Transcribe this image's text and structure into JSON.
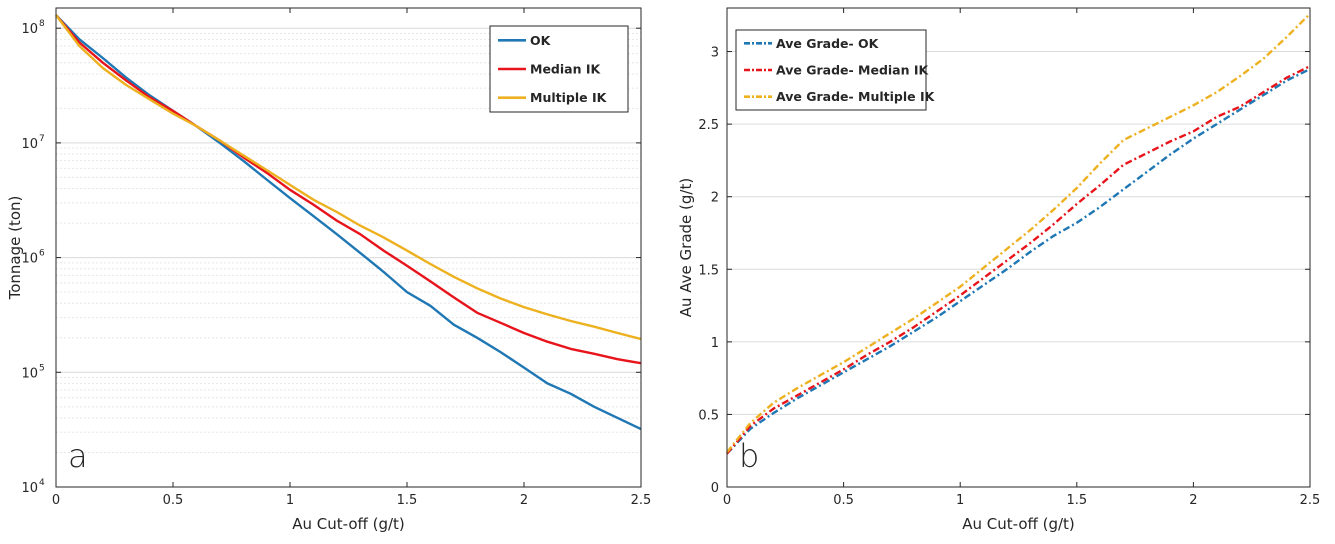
{
  "chart_data": [
    {
      "id": "a",
      "type": "line",
      "panel_label": "a",
      "xlabel": "Au Cut-off (g/t)",
      "ylabel": "Tonnage (ton)",
      "xlim": [
        0,
        2.5
      ],
      "ylim": [
        10000,
        150000000
      ],
      "yscale": "log",
      "x_ticks": [
        0,
        0.5,
        1,
        1.5,
        2,
        2.5
      ],
      "x_tick_labels": [
        "0",
        "0.5",
        "1",
        "1.5",
        "2",
        "2.5"
      ],
      "y_ticks": [
        10000,
        100000,
        1000000,
        10000000,
        100000000
      ],
      "y_tick_labels": [
        [
          "10",
          "4"
        ],
        [
          "10",
          "5"
        ],
        [
          "10",
          "6"
        ],
        [
          "10",
          "7"
        ],
        [
          "10",
          "8"
        ]
      ],
      "grid": "horizontal",
      "legend_position": "top-right",
      "series": [
        {
          "name": "OK",
          "color": "#1f77b4",
          "dash": "solid",
          "x": [
            0,
            0.1,
            0.2,
            0.3,
            0.4,
            0.5,
            0.6,
            0.7,
            0.8,
            0.9,
            1.0,
            1.1,
            1.2,
            1.3,
            1.4,
            1.5,
            1.6,
            1.7,
            1.8,
            1.9,
            2.0,
            2.1,
            2.2,
            2.3,
            2.4,
            2.5
          ],
          "y": [
            130000000,
            80000000,
            55000000,
            37000000,
            26000000,
            19000000,
            14000000,
            10000000,
            7000000,
            4800000,
            3300000,
            2300000,
            1600000,
            1100000,
            750000,
            500000,
            380000,
            260000,
            200000,
            150000,
            110000,
            80000,
            65000,
            50000,
            40000,
            32000
          ]
        },
        {
          "name": "Median IK",
          "color": "#e8141b",
          "dash": "solid",
          "x": [
            0,
            0.1,
            0.2,
            0.3,
            0.4,
            0.5,
            0.6,
            0.7,
            0.8,
            0.9,
            1.0,
            1.1,
            1.2,
            1.3,
            1.4,
            1.5,
            1.6,
            1.7,
            1.8,
            1.9,
            2.0,
            2.1,
            2.2,
            2.3,
            2.4,
            2.5
          ],
          "y": [
            130000000,
            75000000,
            50000000,
            35000000,
            25000000,
            19000000,
            14000000,
            10500000,
            7500000,
            5500000,
            3900000,
            2900000,
            2100000,
            1600000,
            1150000,
            850000,
            620000,
            450000,
            330000,
            270000,
            220000,
            185000,
            160000,
            145000,
            130000,
            120000
          ]
        },
        {
          "name": "Multiple IK",
          "color": "#edb120",
          "dash": "solid",
          "x": [
            0,
            0.1,
            0.2,
            0.3,
            0.4,
            0.5,
            0.6,
            0.7,
            0.8,
            0.9,
            1.0,
            1.1,
            1.2,
            1.3,
            1.4,
            1.5,
            1.6,
            1.7,
            1.8,
            1.9,
            2.0,
            2.1,
            2.2,
            2.3,
            2.4,
            2.5
          ],
          "y": [
            130000000,
            70000000,
            45000000,
            32000000,
            24000000,
            18000000,
            14000000,
            10500000,
            7800000,
            5800000,
            4300000,
            3200000,
            2500000,
            1900000,
            1500000,
            1150000,
            880000,
            680000,
            540000,
            440000,
            370000,
            320000,
            280000,
            250000,
            220000,
            195000
          ]
        }
      ]
    },
    {
      "id": "b",
      "type": "line",
      "panel_label": "b",
      "xlabel": "Au Cut-off (g/t)",
      "ylabel": "Au Ave Grade (g/t)",
      "xlim": [
        0,
        2.5
      ],
      "ylim": [
        0,
        3.3
      ],
      "yscale": "linear",
      "x_ticks": [
        0,
        0.5,
        1,
        1.5,
        2,
        2.5
      ],
      "x_tick_labels": [
        "0",
        "0.5",
        "1",
        "1.5",
        "2",
        "2.5"
      ],
      "y_ticks": [
        0,
        0.5,
        1,
        1.5,
        2,
        2.5,
        3
      ],
      "y_tick_labels": [
        "0",
        "0.5",
        "1",
        "1.5",
        "2",
        "2.5",
        "3"
      ],
      "grid": "horizontal",
      "legend_position": "top-left",
      "series": [
        {
          "name": "Ave Grade- OK",
          "color": "#1f77b4",
          "dash": "dashdot",
          "x": [
            0,
            0.1,
            0.2,
            0.3,
            0.4,
            0.5,
            0.6,
            0.7,
            0.8,
            0.9,
            1.0,
            1.1,
            1.2,
            1.3,
            1.4,
            1.5,
            1.6,
            1.7,
            1.8,
            1.9,
            2.0,
            2.1,
            2.2,
            2.3,
            2.4,
            2.5
          ],
          "y": [
            0.23,
            0.4,
            0.51,
            0.61,
            0.7,
            0.79,
            0.88,
            0.97,
            1.07,
            1.17,
            1.28,
            1.39,
            1.5,
            1.62,
            1.73,
            1.82,
            1.93,
            2.05,
            2.17,
            2.29,
            2.4,
            2.5,
            2.6,
            2.7,
            2.8,
            2.88
          ]
        },
        {
          "name": "Ave Grade- Median IK",
          "color": "#e8141b",
          "dash": "dashdot",
          "x": [
            0,
            0.1,
            0.2,
            0.3,
            0.4,
            0.5,
            0.6,
            0.7,
            0.8,
            0.9,
            1.0,
            1.1,
            1.2,
            1.3,
            1.4,
            1.5,
            1.6,
            1.7,
            1.8,
            1.9,
            2.0,
            2.1,
            2.2,
            2.3,
            2.4,
            2.5
          ],
          "y": [
            0.23,
            0.42,
            0.54,
            0.63,
            0.72,
            0.81,
            0.91,
            1.0,
            1.1,
            1.21,
            1.32,
            1.44,
            1.56,
            1.68,
            1.81,
            1.95,
            2.08,
            2.22,
            2.3,
            2.38,
            2.45,
            2.55,
            2.62,
            2.72,
            2.82,
            2.9
          ]
        },
        {
          "name": "Ave Grade- Multiple IK",
          "color": "#edb120",
          "dash": "dashdot",
          "x": [
            0,
            0.1,
            0.2,
            0.3,
            0.4,
            0.5,
            0.6,
            0.7,
            0.8,
            0.9,
            1.0,
            1.1,
            1.2,
            1.3,
            1.4,
            1.5,
            1.6,
            1.7,
            1.8,
            1.9,
            2.0,
            2.1,
            2.2,
            2.3,
            2.4,
            2.5
          ],
          "y": [
            0.24,
            0.44,
            0.58,
            0.68,
            0.77,
            0.86,
            0.96,
            1.06,
            1.16,
            1.27,
            1.38,
            1.51,
            1.64,
            1.77,
            1.91,
            2.06,
            2.23,
            2.39,
            2.47,
            2.55,
            2.63,
            2.72,
            2.83,
            2.95,
            3.1,
            3.26
          ]
        }
      ]
    }
  ]
}
